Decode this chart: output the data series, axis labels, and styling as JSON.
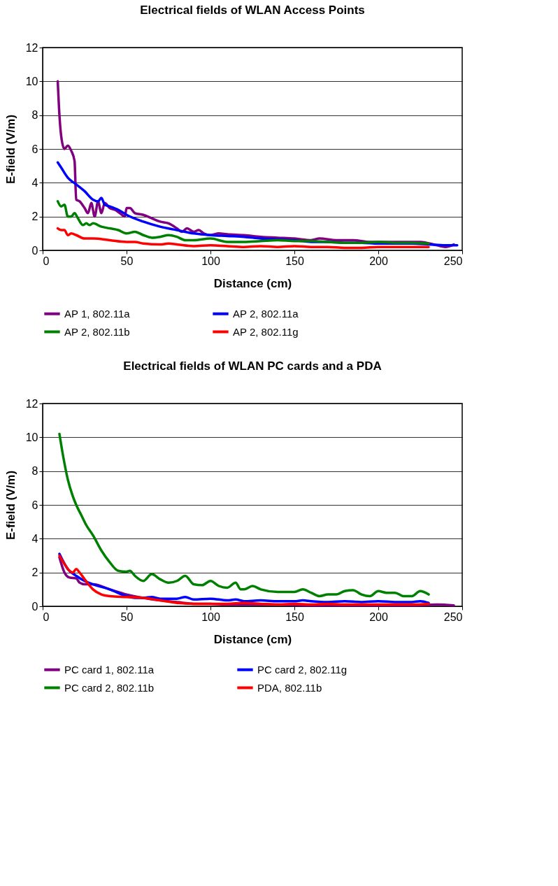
{
  "chart_data": [
    {
      "type": "line",
      "title": "Electrical fields of WLAN Access Points",
      "xlabel": "Distance (cm)",
      "ylabel": "E-field (V/m)",
      "xlim": [
        0,
        250
      ],
      "xticks": [
        0,
        50,
        100,
        150,
        200,
        250
      ],
      "ylim": [
        0,
        12
      ],
      "yticks": [
        0,
        2,
        4,
        6,
        8,
        10,
        12
      ],
      "grid": "y",
      "legend": "bottom",
      "series": [
        {
          "name": "AP 1, 802.11a",
          "color": "#800080",
          "x": [
            9,
            10,
            11,
            13,
            15,
            17,
            19,
            20,
            22,
            25,
            27,
            29,
            31,
            33,
            35,
            37,
            40,
            43,
            46,
            49,
            50,
            52,
            55,
            60,
            65,
            70,
            75,
            80,
            83,
            86,
            90,
            93,
            96,
            100,
            105,
            110,
            120,
            130,
            140,
            150,
            160,
            165,
            175,
            185,
            195,
            205,
            215,
            225,
            235,
            240,
            245
          ],
          "values": [
            10,
            8,
            6.8,
            6.0,
            6.2,
            5.9,
            5.3,
            3.0,
            2.9,
            2.5,
            2.2,
            2.8,
            2.0,
            2.9,
            2.2,
            2.8,
            2.5,
            2.4,
            2.2,
            2.0,
            2.5,
            2.5,
            2.2,
            2.1,
            1.9,
            1.7,
            1.6,
            1.3,
            1.1,
            1.3,
            1.1,
            1.2,
            1.0,
            0.9,
            1.0,
            0.95,
            0.9,
            0.8,
            0.75,
            0.7,
            0.6,
            0.7,
            0.6,
            0.6,
            0.5,
            0.5,
            0.5,
            0.5,
            0.3,
            0.2,
            0.35
          ]
        },
        {
          "name": "AP 2, 802.11a",
          "color": "#0000ff",
          "x": [
            9,
            11,
            15,
            20,
            25,
            30,
            33,
            35,
            37,
            40,
            45,
            50,
            60,
            70,
            80,
            90,
            100,
            110,
            120,
            130,
            140,
            150,
            160,
            170,
            180,
            190,
            200,
            210,
            220,
            230,
            240,
            247
          ],
          "values": [
            5.2,
            4.9,
            4.3,
            3.9,
            3.5,
            3.0,
            2.9,
            3.1,
            2.7,
            2.6,
            2.4,
            2.1,
            1.7,
            1.4,
            1.2,
            1.0,
            0.9,
            0.85,
            0.8,
            0.7,
            0.65,
            0.6,
            0.5,
            0.5,
            0.45,
            0.45,
            0.4,
            0.4,
            0.4,
            0.35,
            0.3,
            0.3
          ]
        },
        {
          "name": "AP 2, 802.11b",
          "color": "#008000",
          "x": [
            9,
            11,
            13,
            15,
            17,
            19,
            21,
            24,
            26,
            28,
            30,
            35,
            40,
            45,
            50,
            55,
            60,
            65,
            70,
            75,
            80,
            85,
            90,
            100,
            110,
            120,
            130,
            140,
            150,
            160,
            170,
            180,
            190,
            200,
            210,
            220,
            230
          ],
          "values": [
            2.9,
            2.6,
            2.7,
            2.0,
            2.0,
            2.2,
            1.9,
            1.5,
            1.6,
            1.5,
            1.6,
            1.4,
            1.3,
            1.2,
            1.0,
            1.1,
            0.9,
            0.75,
            0.8,
            0.9,
            0.8,
            0.6,
            0.6,
            0.7,
            0.5,
            0.5,
            0.55,
            0.6,
            0.55,
            0.55,
            0.5,
            0.45,
            0.45,
            0.5,
            0.45,
            0.45,
            0.4
          ]
        },
        {
          "name": "AP 2, 802.11g",
          "color": "#ff0000",
          "x": [
            9,
            11,
            13,
            15,
            17,
            20,
            25,
            30,
            40,
            50,
            55,
            60,
            70,
            75,
            80,
            90,
            100,
            110,
            120,
            130,
            140,
            150,
            160,
            170,
            180,
            190,
            200,
            210,
            220,
            230
          ],
          "values": [
            1.3,
            1.2,
            1.2,
            0.9,
            1.0,
            0.9,
            0.7,
            0.7,
            0.6,
            0.5,
            0.5,
            0.4,
            0.35,
            0.4,
            0.35,
            0.25,
            0.3,
            0.25,
            0.2,
            0.25,
            0.2,
            0.25,
            0.2,
            0.2,
            0.15,
            0.15,
            0.2,
            0.2,
            0.2,
            0.2
          ]
        }
      ]
    },
    {
      "type": "line",
      "title": "Electrical fields of WLAN PC cards and a PDA",
      "xlabel": "Distance (cm)",
      "ylabel": "E-field (V/m)",
      "xlim": [
        0,
        250
      ],
      "xticks": [
        0,
        50,
        100,
        150,
        200,
        250
      ],
      "ylim": [
        0,
        12
      ],
      "yticks": [
        0,
        2,
        4,
        6,
        8,
        10,
        12
      ],
      "grid": "y",
      "legend": "bottom",
      "series": [
        {
          "name": "PC card 1, 802.11a",
          "color": "#800080",
          "x": [
            10,
            13,
            16,
            20,
            22,
            25,
            30,
            40,
            50,
            60,
            70,
            80,
            90,
            100,
            110,
            120,
            140,
            160,
            180,
            200,
            220,
            235,
            245
          ],
          "values": [
            2.9,
            2.0,
            1.7,
            1.65,
            1.4,
            1.3,
            1.3,
            1.0,
            0.7,
            0.5,
            0.35,
            0.25,
            0.15,
            0.15,
            0.1,
            0.1,
            0.1,
            0.05,
            0.05,
            0.05,
            0.05,
            0.1,
            0.05
          ]
        },
        {
          "name": "PC card 2, 802.11g",
          "color": "#0000ff",
          "x": [
            10,
            15,
            20,
            25,
            30,
            40,
            50,
            55,
            60,
            65,
            70,
            80,
            85,
            90,
            100,
            110,
            115,
            120,
            130,
            140,
            150,
            155,
            160,
            170,
            180,
            190,
            200,
            210,
            220,
            225,
            230
          ],
          "values": [
            3.1,
            2.2,
            1.8,
            1.5,
            1.3,
            1.0,
            0.6,
            0.5,
            0.5,
            0.55,
            0.45,
            0.45,
            0.55,
            0.4,
            0.45,
            0.35,
            0.4,
            0.3,
            0.35,
            0.3,
            0.3,
            0.35,
            0.3,
            0.25,
            0.3,
            0.25,
            0.3,
            0.25,
            0.25,
            0.3,
            0.2
          ]
        },
        {
          "name": "PC card 2, 802.11b",
          "color": "#008000",
          "x": [
            10,
            12,
            15,
            18,
            20,
            23,
            26,
            30,
            35,
            40,
            45,
            50,
            52,
            55,
            60,
            65,
            70,
            75,
            80,
            85,
            90,
            95,
            100,
            105,
            110,
            115,
            118,
            120,
            125,
            130,
            140,
            150,
            155,
            160,
            165,
            170,
            175,
            180,
            185,
            190,
            195,
            200,
            205,
            210,
            215,
            220,
            225,
            230
          ],
          "values": [
            10.2,
            9,
            7.5,
            6.5,
            6.0,
            5.4,
            4.8,
            4.2,
            3.3,
            2.6,
            2.1,
            2.05,
            2.1,
            1.8,
            1.5,
            1.9,
            1.6,
            1.4,
            1.5,
            1.8,
            1.3,
            1.25,
            1.5,
            1.2,
            1.1,
            1.4,
            1.0,
            1.0,
            1.2,
            1.0,
            0.85,
            0.85,
            1.0,
            0.8,
            0.6,
            0.7,
            0.7,
            0.9,
            0.95,
            0.7,
            0.6,
            0.9,
            0.8,
            0.8,
            0.6,
            0.6,
            0.9,
            0.7
          ]
        },
        {
          "name": "PDA, 802.11b",
          "color": "#ff0000",
          "x": [
            10,
            13,
            16,
            18,
            20,
            22,
            25,
            30,
            35,
            40,
            50,
            60,
            70,
            80,
            90,
            100,
            110,
            120,
            130,
            140,
            150,
            160,
            170,
            180,
            190,
            200,
            210,
            220,
            230
          ],
          "values": [
            3.0,
            2.5,
            2.1,
            2.0,
            2.2,
            2.0,
            1.6,
            1.0,
            0.7,
            0.6,
            0.55,
            0.5,
            0.35,
            0.2,
            0.15,
            0.15,
            0.15,
            0.2,
            0.15,
            0.1,
            0.15,
            0.1,
            0.15,
            0.1,
            0.1,
            0.1,
            0.1,
            0.1,
            0.15
          ]
        }
      ]
    }
  ]
}
